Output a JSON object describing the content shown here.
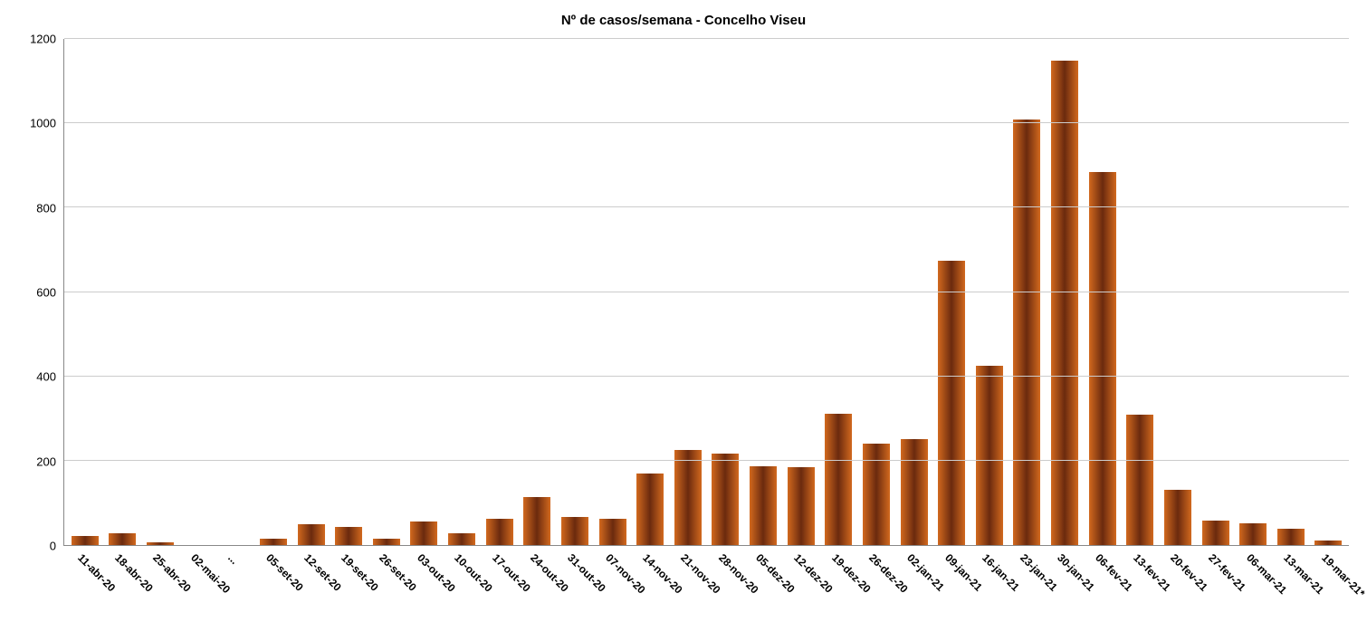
{
  "chart": {
    "type": "bar",
    "title": "Nº de casos/semana - Concelho Viseu",
    "title_fontsize": 15,
    "title_weight": "bold",
    "background_color": "#ffffff",
    "grid_color": "#cccccc",
    "axis_color": "#888888",
    "bar_gradient": [
      "#d2691e",
      "#6b2a0e",
      "#d2691e"
    ],
    "bar_width": 0.72,
    "ylim": [
      0,
      1200
    ],
    "yticks": [
      0,
      200,
      400,
      600,
      800,
      1000,
      1200
    ],
    "ytick_fontsize": 13,
    "xtick_fontsize": 12,
    "xtick_weight": "bold",
    "xtick_rotation": 45,
    "categories": [
      "11-abr-20",
      "18-abr-20",
      "25-abr-20",
      "02-mai-20",
      "...",
      "05-set-20",
      "12-set-20",
      "19-set-20",
      "26-set-20",
      "03-out-20",
      "10-out-20",
      "17-out-20",
      "24-out-20",
      "31-out-20",
      "07-nov-20",
      "14-nov-20",
      "21-nov-20",
      "28-nov-20",
      "05-dez-20",
      "12-dez-20",
      "19-dez-20",
      "26-dez-20",
      "02-jan-21",
      "09-jan-21",
      "16-jan-21",
      "23-jan-21",
      "30-jan-21",
      "06-fev-21",
      "13-fev-21",
      "20-fev-21",
      "27-fev-21",
      "06-mar-21",
      "13-mar-21",
      "19-mar-21*"
    ],
    "values": [
      22,
      28,
      6,
      0,
      0,
      14,
      50,
      42,
      16,
      56,
      28,
      62,
      114,
      66,
      62,
      170,
      226,
      216,
      186,
      184,
      312,
      240,
      252,
      674,
      426,
      1008,
      1148,
      884,
      310,
      130,
      58,
      52,
      38,
      10
    ]
  }
}
